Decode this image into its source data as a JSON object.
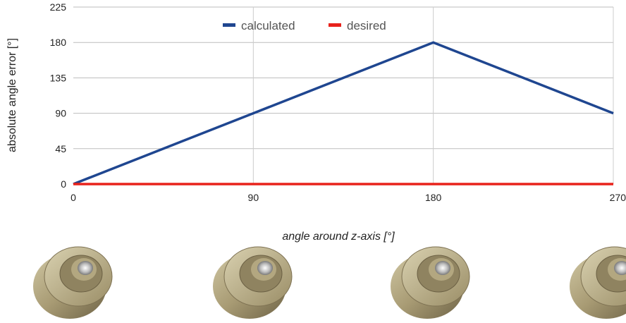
{
  "chart_data": {
    "type": "line",
    "title": "",
    "xlabel": "angle around z-axis [°]",
    "ylabel": "absolute angle error [°]",
    "xlim": [
      0,
      270
    ],
    "ylim": [
      0,
      225
    ],
    "x_ticks": [
      0,
      90,
      180,
      270
    ],
    "y_ticks": [
      0,
      45,
      90,
      135,
      180,
      225
    ],
    "grid": true,
    "legend_position": "top-center",
    "series": [
      {
        "name": "calculated",
        "color": "#1f4690",
        "x": [
          0,
          90,
          180,
          270
        ],
        "values": [
          0,
          90,
          180,
          90
        ]
      },
      {
        "name": "desired",
        "color": "#e8221b",
        "x": [
          0,
          90,
          180,
          270
        ],
        "values": [
          0,
          0,
          0,
          0
        ]
      }
    ]
  },
  "images": [
    {
      "name": "wheel-hub-render-0",
      "icon": "wheel-hub-3d-render",
      "angle": 0
    },
    {
      "name": "wheel-hub-render-90",
      "icon": "wheel-hub-3d-render",
      "angle": 90
    },
    {
      "name": "wheel-hub-render-180",
      "icon": "wheel-hub-3d-render",
      "angle": 180
    },
    {
      "name": "wheel-hub-render-270",
      "icon": "wheel-hub-3d-render",
      "angle": 270
    }
  ]
}
